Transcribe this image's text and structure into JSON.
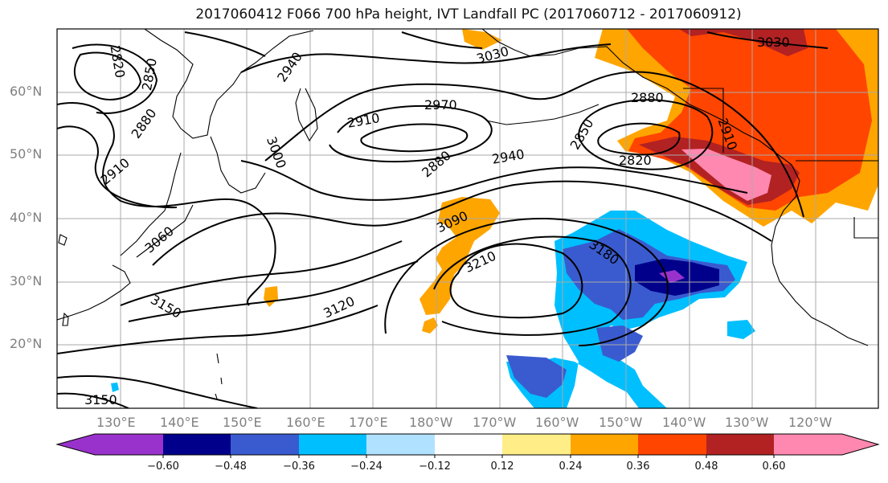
{
  "title": "2017060412 F066 700 hPa height, IVT Landfall PC (2017060712 - 2017060912)",
  "latitude_labels": [
    "60°N",
    "50°N",
    "40°N",
    "30°N",
    "20°N"
  ],
  "longitude_labels": [
    "130°E",
    "140°E",
    "150°E",
    "160°E",
    "170°E",
    "180°W",
    "170°W",
    "160°W",
    "150°W",
    "140°W",
    "130°W",
    "120°W"
  ],
  "contour_labels": [
    "2820",
    "2850",
    "2880",
    "2910",
    "2940",
    "2970",
    "3000",
    "3030",
    "3060",
    "3090",
    "3120",
    "3150",
    "3180",
    "3210",
    "2910",
    "2880",
    "2850",
    "2880",
    "2820",
    "2910",
    "2940",
    "3030",
    "3150"
  ],
  "colorbar": {
    "ticks": [
      "−0.60",
      "−0.48",
      "−0.36",
      "−0.24",
      "−0.12",
      "0.12",
      "0.24",
      "0.36",
      "0.48",
      "0.60"
    ],
    "colors": [
      "#9932cc",
      "#00008b",
      "#3a5bcf",
      "#00bfff",
      "#b0e2ff",
      "#ffffff",
      "#ffee88",
      "#ffa500",
      "#ff4500",
      "#b22222",
      "#ff88b0"
    ]
  }
}
